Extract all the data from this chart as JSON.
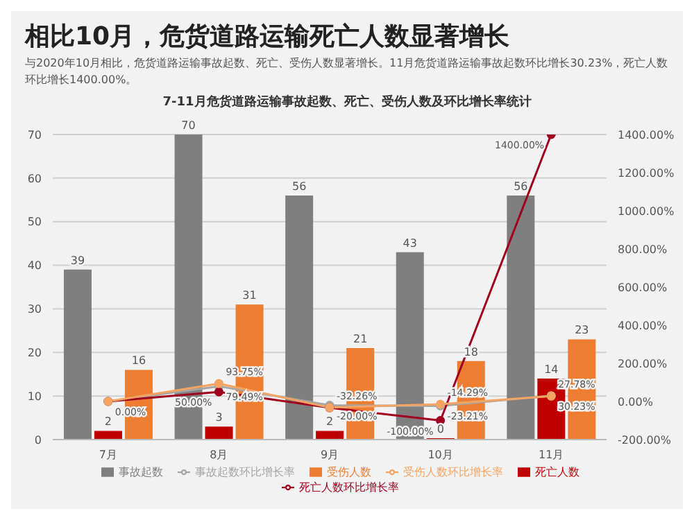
{
  "chart_data": {
    "type": "bar",
    "title": "相比10月，危货道路运输死亡人数显著增长",
    "subtitle": "与2020年10月相比，危货道路运输事故起数、死亡、受伤人数显著增长。11月危货道路运输事故起数环比增长30.23%，死亡人数环比增长1400.00%。",
    "annotations": [
      "7-11月危货道路运输事故起数、死亡、受伤人数及环比增长率统计"
    ],
    "categories": [
      "7月",
      "8月",
      "9月",
      "10月",
      "11月"
    ],
    "series": [
      {
        "name": "事故起数",
        "color": "#7f7f7f",
        "values": [
          39,
          70,
          56,
          43,
          56
        ]
      },
      {
        "name": "死亡人数",
        "color": "#c00000",
        "values": [
          2,
          3,
          2,
          0,
          14
        ]
      },
      {
        "name": "受伤人数",
        "color": "#ed7d31",
        "values": [
          16,
          31,
          21,
          18,
          23
        ]
      },
      {
        "name": "事故起数环比增长率",
        "type": "line",
        "axis": "y2",
        "color": "#a5a5a5",
        "values": [
          0,
          79.49,
          -20,
          -23.21,
          30.23
        ],
        "value_labels": [
          "0.00%",
          "79.49%",
          "-20.00%",
          "-23.21%",
          "30.23%"
        ]
      },
      {
        "name": "死亡人数环比增长率",
        "type": "line",
        "axis": "y2",
        "color": "#a0001e",
        "values": [
          0,
          50,
          -33,
          -100,
          1400
        ],
        "value_labels": [
          null,
          "50.00%",
          null,
          "-100.00%",
          "1400.00%"
        ]
      },
      {
        "name": "受伤人数环比增长率",
        "type": "line",
        "axis": "y2",
        "color": "#f4a460",
        "values": [
          0,
          93.75,
          -32.26,
          -14.29,
          27.78
        ],
        "value_labels": [
          null,
          "93.75%",
          "-32.26%",
          "-14.29%",
          "27.78%"
        ]
      }
    ],
    "data_labels": true,
    "ylim": [
      0,
      70
    ],
    "yticks": [
      0,
      10,
      20,
      30,
      40,
      50,
      60,
      70
    ],
    "y2lim": [
      -200,
      1400
    ],
    "y2ticks": [
      {
        "value": -200,
        "label": "-200.00%"
      },
      {
        "value": 0,
        "label": "0.00%"
      },
      {
        "value": 200,
        "label": "200.00%"
      },
      {
        "value": 400,
        "label": "400.00%"
      },
      {
        "value": 600,
        "label": "600.00%"
      },
      {
        "value": 800,
        "label": "800.00%"
      },
      {
        "value": 1000,
        "label": "1000.00%"
      },
      {
        "value": 1200,
        "label": "1200.00%"
      },
      {
        "value": 1400,
        "label": "1400.00%"
      }
    ],
    "grid": "y",
    "legend": "bottom",
    "marker": "circle"
  }
}
